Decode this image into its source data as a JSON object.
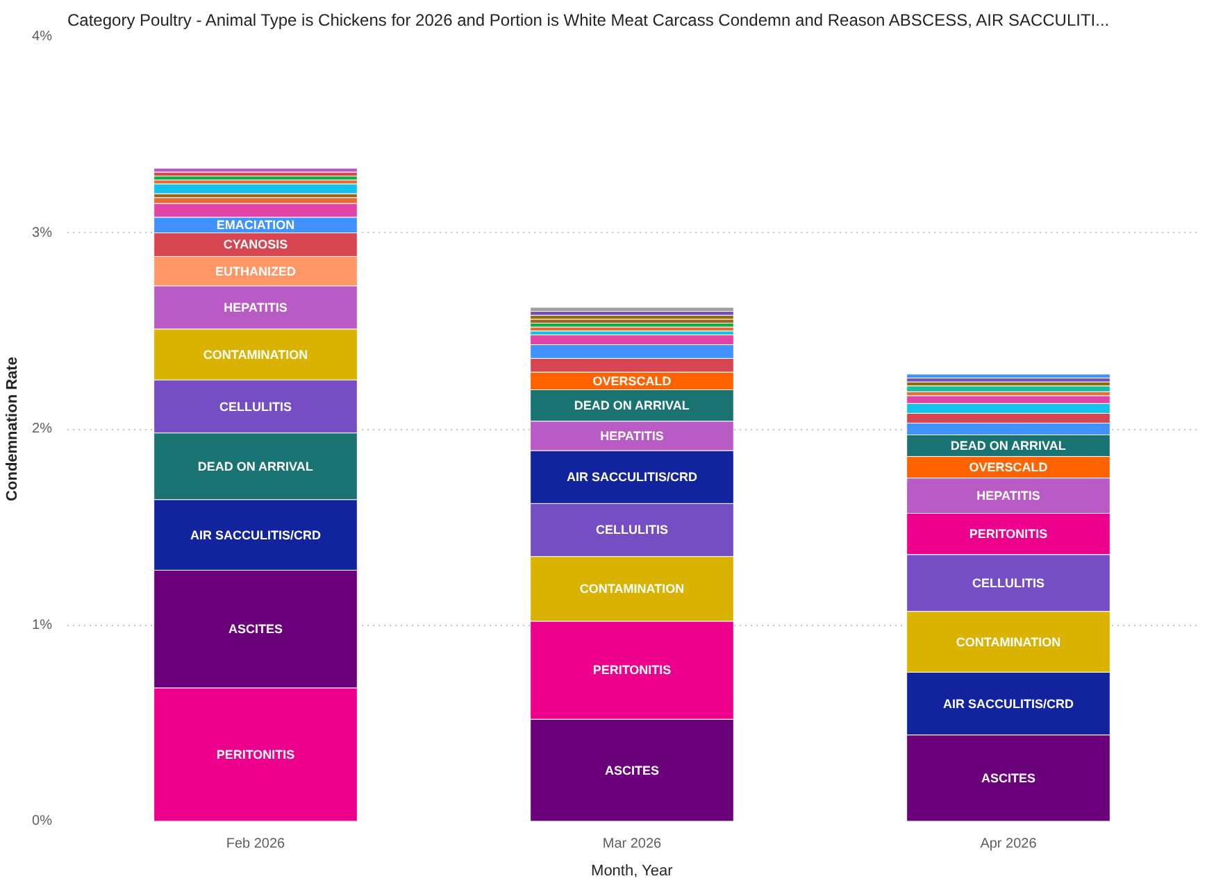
{
  "chart_data": {
    "type": "bar",
    "stacked": true,
    "title": "Category Poultry - Animal Type is Chickens for 2026 and Portion is White Meat Carcass Condemn and Reason ABSCESS, AIR SACCULITI...",
    "xlabel": "Month, Year",
    "ylabel": "Condemnation Rate",
    "categories": [
      "Feb 2026",
      "Mar 2026",
      "Apr 2026"
    ],
    "ylim": [
      0,
      4
    ],
    "yticks": [
      {
        "value": 0,
        "label": "0%"
      },
      {
        "value": 1,
        "label": "1%"
      },
      {
        "value": 2,
        "label": "2%"
      },
      {
        "value": 3,
        "label": "3%"
      },
      {
        "value": 4,
        "label": "4%"
      }
    ],
    "grid": "y",
    "series": [
      {
        "values": [
          0.68,
          0.52,
          0.44
        ],
        "colors": [
          "#ec008c",
          "#6b007b",
          "#6b007b"
        ],
        "value_labels": [
          "PERITONITIS",
          "ASCITES",
          "ASCITES"
        ]
      },
      {
        "values": [
          0.6,
          0.5,
          0.32
        ],
        "colors": [
          "#6b007b",
          "#ec008c",
          "#12239e"
        ],
        "value_labels": [
          "ASCITES",
          "PERITONITIS",
          "AIR SACCULITIS/CRD"
        ]
      },
      {
        "values": [
          0.36,
          0.33,
          0.31
        ],
        "colors": [
          "#12239e",
          "#d9b300",
          "#d9b300"
        ],
        "value_labels": [
          "AIR SACCULITIS/CRD",
          "CONTAMINATION",
          "CONTAMINATION"
        ]
      },
      {
        "values": [
          0.34,
          0.27,
          0.29
        ],
        "colors": [
          "#1a7373",
          "#744ec2",
          "#744ec2"
        ],
        "value_labels": [
          "DEAD ON ARRIVAL",
          "CELLULITIS",
          "CELLULITIS"
        ]
      },
      {
        "values": [
          0.27,
          0.27,
          0.21
        ],
        "colors": [
          "#744ec2",
          "#12239e",
          "#ec008c"
        ],
        "value_labels": [
          "CELLULITIS",
          "AIR SACCULITIS/CRD",
          "PERITONITIS"
        ]
      },
      {
        "values": [
          0.26,
          0.15,
          0.18
        ],
        "colors": [
          "#d9b300",
          "#b95bc4",
          "#b95bc4"
        ],
        "value_labels": [
          "CONTAMINATION",
          "HEPATITIS",
          "HEPATITIS"
        ]
      },
      {
        "values": [
          0.22,
          0.16,
          0.11
        ],
        "colors": [
          "#b95bc4",
          "#1a7373",
          "#ff6300"
        ],
        "value_labels": [
          "HEPATITIS",
          "DEAD ON ARRIVAL",
          "OVERSCALD"
        ]
      },
      {
        "values": [
          0.15,
          0.09,
          0.11
        ],
        "colors": [
          "#fe9666",
          "#ff6300",
          "#1a7373"
        ],
        "value_labels": [
          "EUTHANIZED",
          "OVERSCALD",
          "DEAD ON ARRIVAL"
        ]
      },
      {
        "values": [
          0.12,
          0.07,
          0.06
        ],
        "colors": [
          "#d64550",
          "#d64550",
          "#4092ff"
        ],
        "value_labels": [
          "CYANOSIS",
          null,
          null
        ]
      },
      {
        "values": [
          0.08,
          0.07,
          0.05
        ],
        "colors": [
          "#4092ff",
          "#4092ff",
          "#d64550"
        ],
        "value_labels": [
          "EMACIATION",
          null,
          null
        ]
      },
      {
        "values": [
          0.07,
          0.05,
          0.05
        ],
        "colors": [
          "#e044a7",
          "#e044a7",
          "#14c1e8"
        ]
      },
      {
        "values": [
          0.03,
          0.02,
          0.04
        ],
        "colors": [
          "#e66c37",
          "#14c1e8",
          "#e044a7"
        ]
      },
      {
        "values": [
          0.02,
          0.02,
          0.02
        ],
        "colors": [
          "#a0631b",
          "#e66c37",
          "#e66c37"
        ]
      },
      {
        "values": [
          0.05,
          0.02,
          0.03
        ],
        "colors": [
          "#14c1e8",
          "#1aab40",
          "#1abc9c"
        ]
      },
      {
        "values": [
          0.02,
          0.02,
          0.02
        ],
        "colors": [
          "#e66c37",
          "#a0631b",
          "#8d6e00"
        ]
      },
      {
        "values": [
          0.02,
          0.02,
          0.02
        ],
        "colors": [
          "#1aab40",
          "#8d6e00",
          "#744ec2"
        ]
      },
      {
        "values": [
          0.02,
          0.02,
          0.02
        ],
        "colors": [
          "#d64550",
          "#744ec2",
          "#4092ff"
        ]
      },
      {
        "values": [
          0.02,
          0.02,
          null
        ],
        "colors": [
          "#b95bc4",
          "#9e9e9e",
          null
        ]
      }
    ]
  }
}
